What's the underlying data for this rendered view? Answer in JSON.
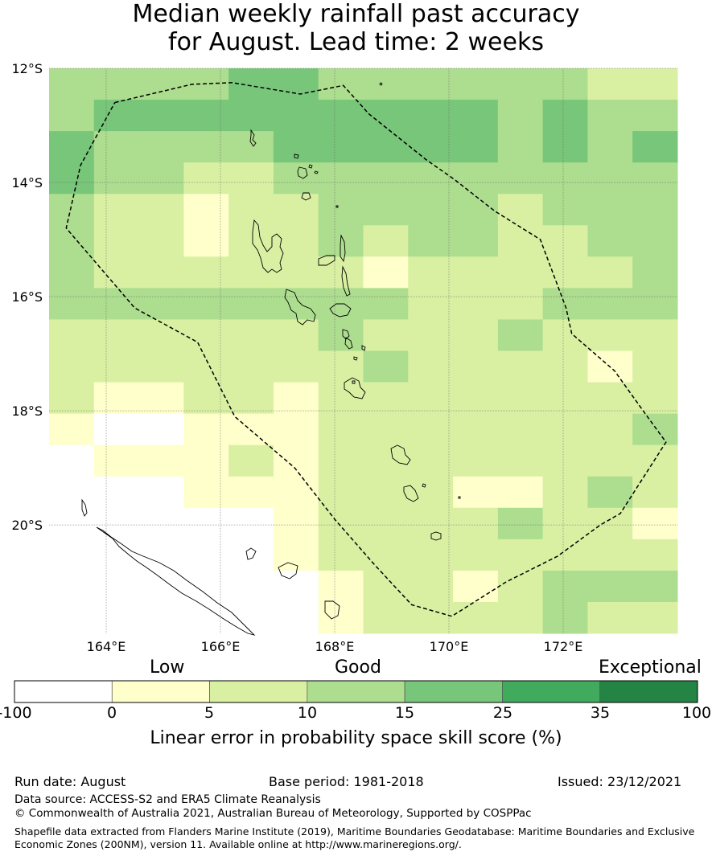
{
  "title_line1": "Median weekly rainfall past accuracy",
  "title_line2": "for August. Lead time: 2 weeks",
  "lat_labels": [
    "12°S",
    "14°S",
    "16°S",
    "18°S",
    "20°S"
  ],
  "lon_labels": [
    "164°E",
    "166°E",
    "168°E",
    "170°E",
    "172°E"
  ],
  "colorbar": {
    "category_labels": [
      "Low",
      "Good",
      "Exceptional"
    ],
    "ticks": [
      "-100",
      "0",
      "5",
      "10",
      "15",
      "25",
      "35",
      "100"
    ],
    "colors": [
      "#ffffff",
      "#ffffcc",
      "#d9f0a3",
      "#addd8e",
      "#78c679",
      "#41ab5d",
      "#238443"
    ],
    "title": "Linear error in probability space skill score (%)"
  },
  "footer": {
    "run_date": "Run date: August",
    "base_period": "Base period: 1981-2018",
    "issued": "Issued: 23/12/2021",
    "data_source": "Data source: ACCESS-S2 and ERA5 Climate Reanalysis",
    "copyright": "© Commonwealth of Australia 2021, Australian Bureau of Meteorology, Supported by COSPPac",
    "shapefile_line1": "Shapefile data extracted from Flanders Marine Institute (2019), Maritime Boundaries Geodatabase: Maritime Boundaries and Exclusive",
    "shapefile_line2": "Economic Zones (200NM), version 11. Available online at http://www.marineregions.org/."
  },
  "map_data": {
    "lon_range": [
      163,
      174
    ],
    "lat_range": [
      -12,
      -21.9
    ],
    "cell_size_deg": 0.833,
    "grid_rows": [
      "33334433333322",
      "34444444443433",
      "43333444443434",
      "43322333333333",
      "32212233332333",
      "32212232332233",
      "32222221222223",
      "33333333222333",
      "22222232223222",
      "22222223222212",
      "21122122222222",
      "10011122222223",
      "01112122222222",
      "00011122211232",
      "00000122223221",
      "00000122222222",
      "00000012212333",
      "00000012222322"
    ],
    "eez_boundary": [
      [
        164.15,
        -12.6
      ],
      [
        165.5,
        -12.28
      ],
      [
        166.2,
        -12.25
      ],
      [
        167.4,
        -12.45
      ],
      [
        168.15,
        -12.3
      ],
      [
        168.6,
        -12.8
      ],
      [
        169.6,
        -13.6
      ],
      [
        170.1,
        -13.95
      ],
      [
        170.8,
        -14.5
      ],
      [
        171.6,
        -15.0
      ],
      [
        172.05,
        -16.2
      ],
      [
        172.15,
        -16.65
      ],
      [
        172.9,
        -17.3
      ],
      [
        173.4,
        -18.0
      ],
      [
        173.8,
        -18.55
      ],
      [
        173.0,
        -19.8
      ],
      [
        172.65,
        -20.0
      ],
      [
        171.9,
        -20.55
      ],
      [
        171.0,
        -21.0
      ],
      [
        170.05,
        -21.6
      ],
      [
        169.35,
        -21.4
      ],
      [
        168.7,
        -20.7
      ],
      [
        168.0,
        -19.9
      ],
      [
        167.3,
        -19.0
      ],
      [
        166.25,
        -18.1
      ],
      [
        165.6,
        -16.8
      ],
      [
        164.5,
        -16.2
      ],
      [
        163.3,
        -14.8
      ],
      [
        163.55,
        -13.7
      ]
    ]
  }
}
